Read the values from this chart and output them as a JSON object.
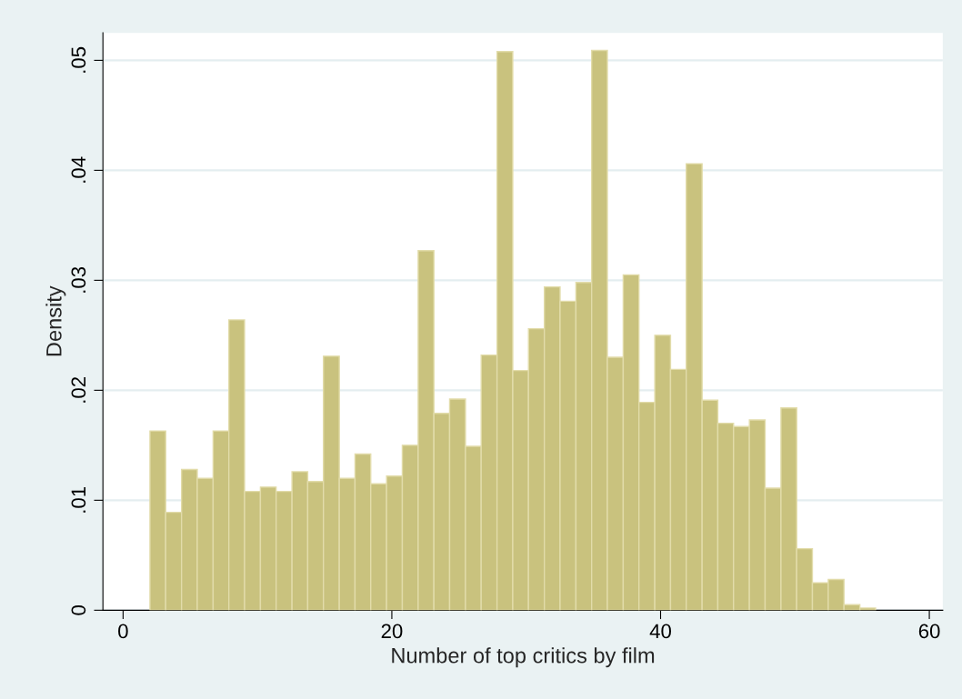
{
  "chart_data": {
    "type": "histogram",
    "xlabel": "Number of top critics by film",
    "ylabel": "Density",
    "bins": [
      2.0,
      3.17,
      4.35,
      5.52,
      6.7,
      7.87,
      9.04,
      10.22,
      11.39,
      12.57,
      13.74,
      14.91,
      16.09,
      17.26,
      18.43,
      19.61,
      20.78,
      21.96,
      23.13,
      24.3,
      25.48,
      26.65,
      27.83,
      29.0,
      30.17,
      31.35,
      32.52,
      33.7,
      34.87,
      36.04,
      37.22,
      38.39,
      39.57,
      40.74,
      41.91,
      43.09,
      44.26,
      45.43,
      46.61,
      47.78,
      48.96,
      50.13,
      51.3,
      52.48,
      53.65,
      54.83,
      56.0
    ],
    "values": [
      0.0163,
      0.0089,
      0.0128,
      0.012,
      0.0163,
      0.0264,
      0.0108,
      0.0112,
      0.0108,
      0.0126,
      0.0117,
      0.0231,
      0.012,
      0.0142,
      0.0115,
      0.0122,
      0.015,
      0.0327,
      0.0179,
      0.0192,
      0.0149,
      0.0232,
      0.0508,
      0.0218,
      0.0256,
      0.0294,
      0.0281,
      0.0298,
      0.0509,
      0.023,
      0.0305,
      0.0189,
      0.025,
      0.0219,
      0.0406,
      0.0191,
      0.017,
      0.0167,
      0.0173,
      0.0111,
      0.0184,
      0.0056,
      0.0025,
      0.0028,
      0.0005,
      0.0002
    ],
    "color": "#c9c27e",
    "xlim": [
      -1.5,
      61
    ],
    "ylim": [
      0,
      0.0525
    ],
    "xticks": [
      0,
      20,
      40,
      60
    ],
    "yticks": [
      {
        "value": 0,
        "label": "0"
      },
      {
        "value": 0.01,
        "label": ".01"
      },
      {
        "value": 0.02,
        "label": ".02"
      },
      {
        "value": 0.03,
        "label": ".03"
      },
      {
        "value": 0.04,
        "label": ".04"
      },
      {
        "value": 0.05,
        "label": ".05"
      }
    ],
    "grid": "y"
  }
}
